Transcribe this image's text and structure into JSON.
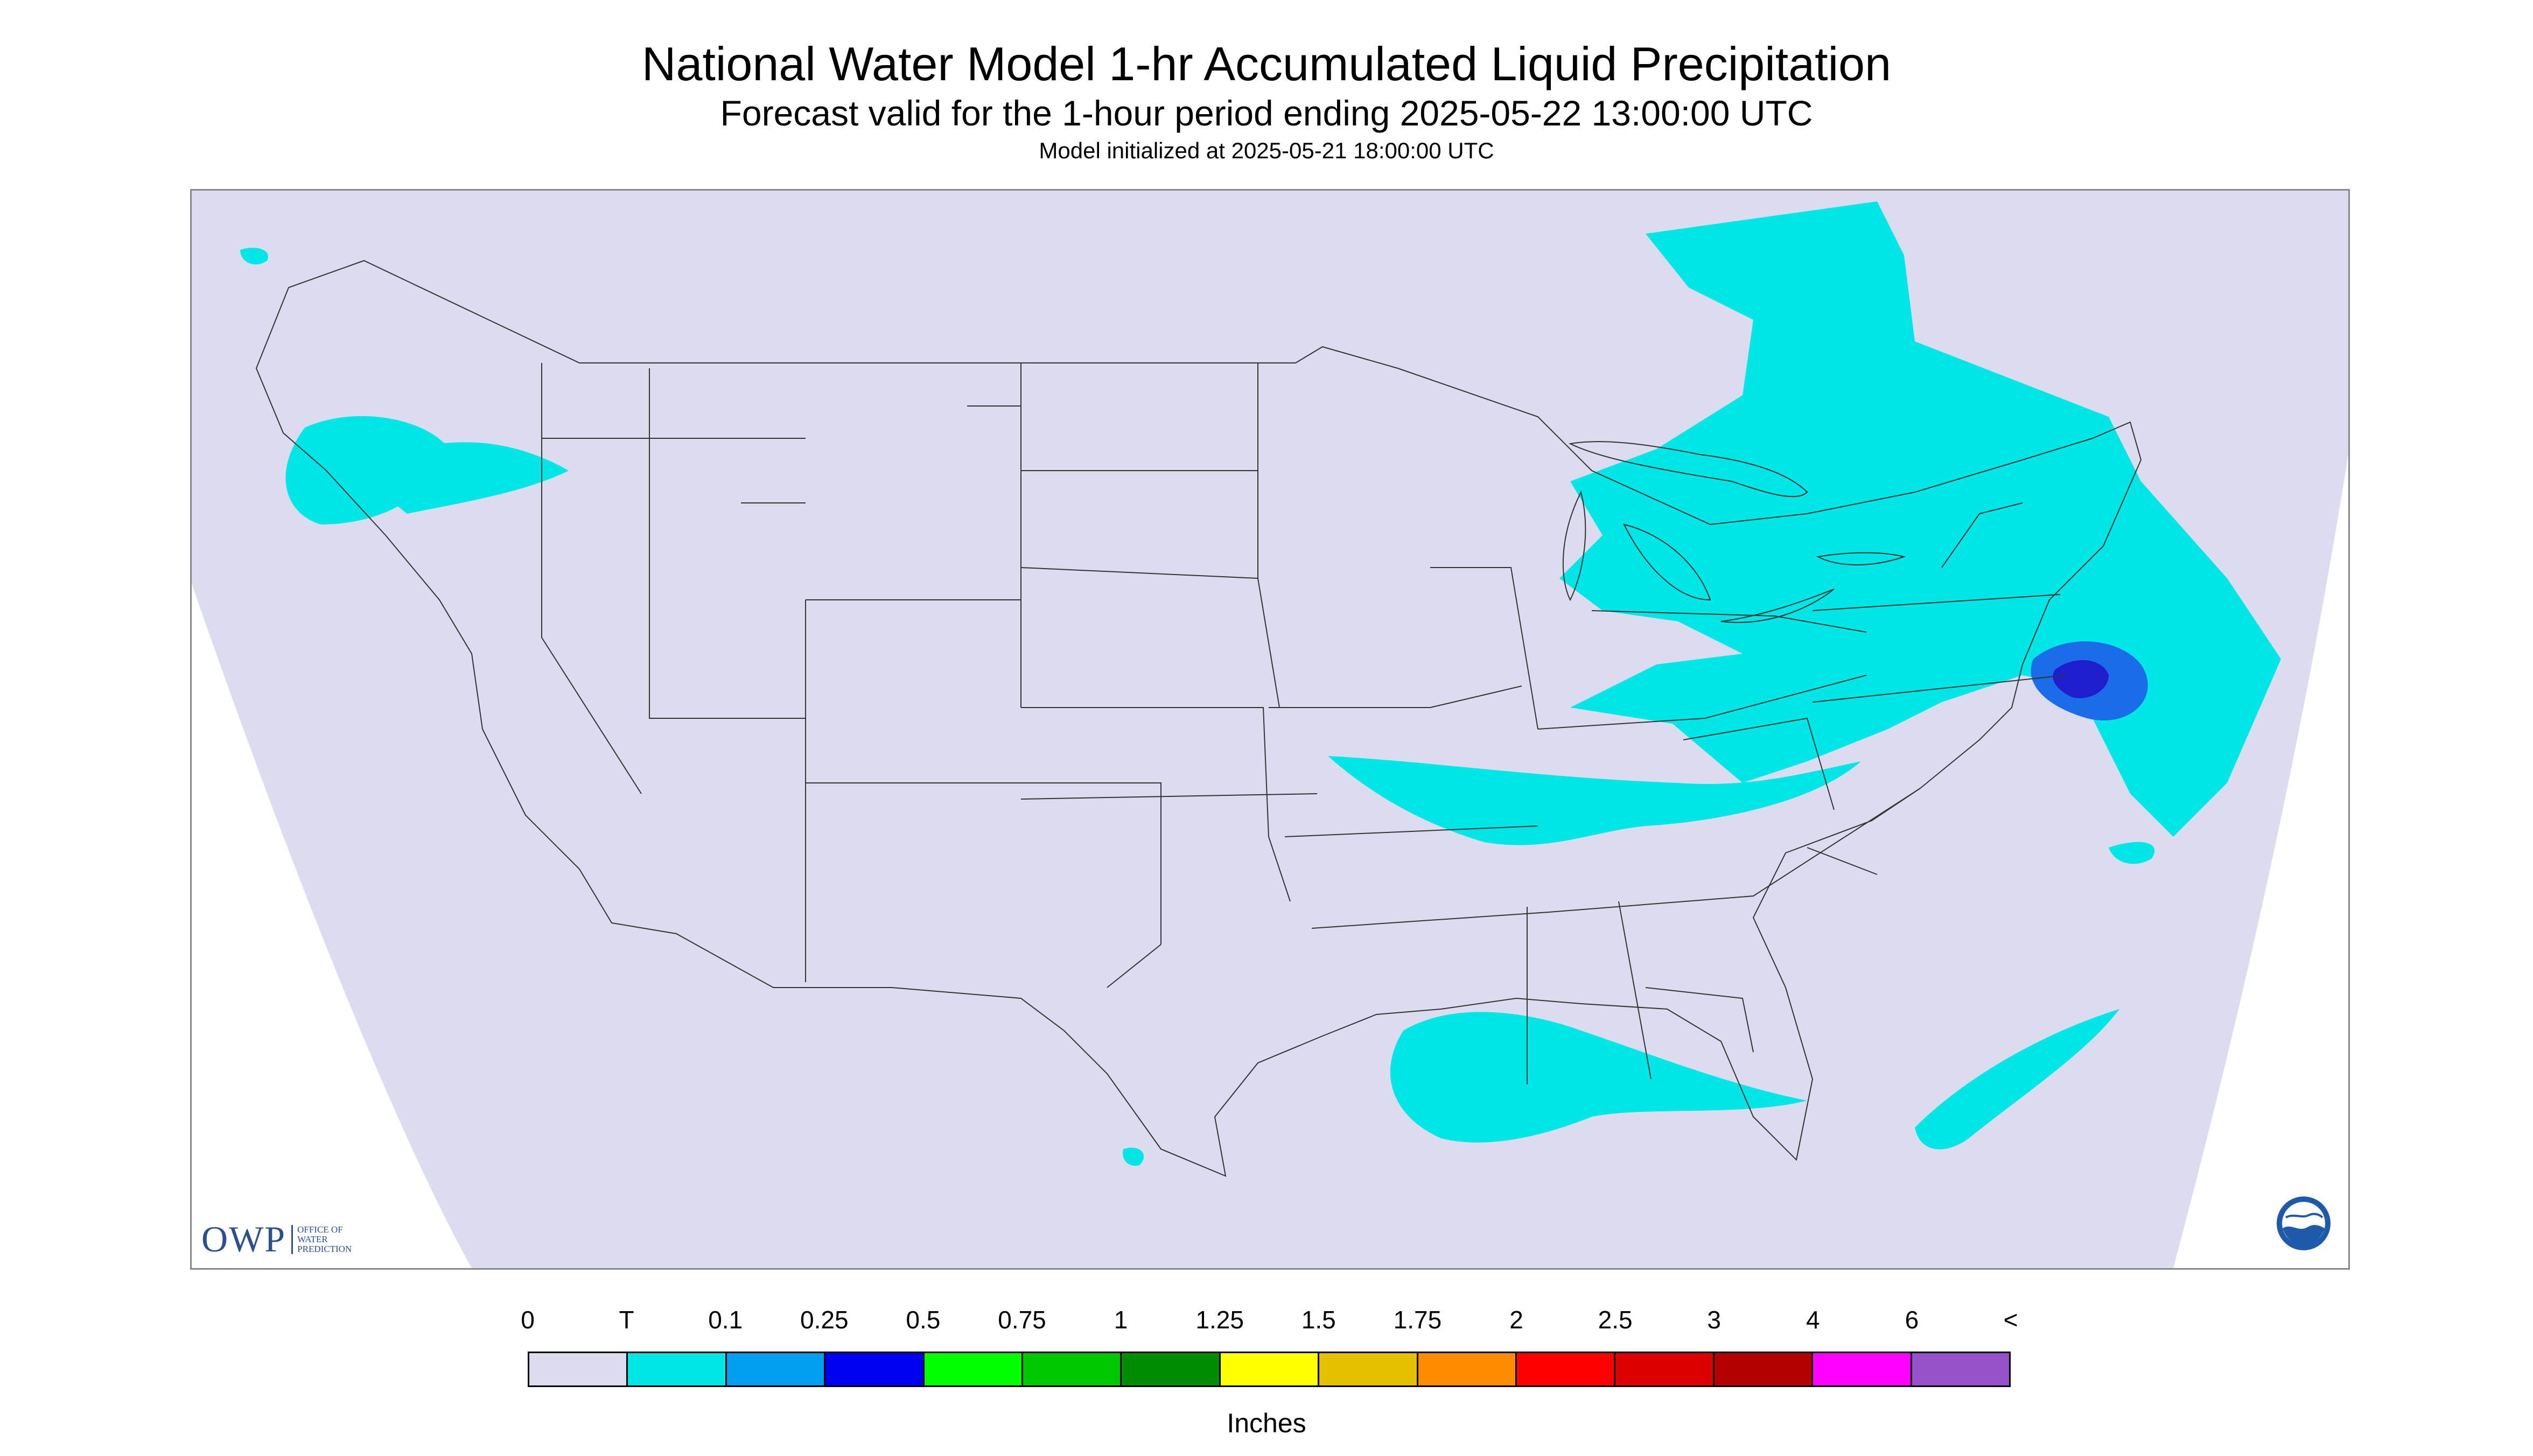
{
  "title": "National Water Model 1-hr Accumulated Liquid Precipitation",
  "subtitle": "Forecast valid for the 1-hour period ending 2025-05-22 13:00:00 UTC",
  "model_init": "Model initialized at 2025-05-21 18:00:00 UTC",
  "logo": {
    "owp_abbrev": "OWP",
    "owp_full": "OFFICE OF WATER PREDICTION",
    "noaa": "NOAA"
  },
  "legend": {
    "labels": [
      "0",
      "T",
      "0.1",
      "0.25",
      "0.5",
      "0.75",
      "1",
      "1.25",
      "1.5",
      "1.75",
      "2",
      "2.5",
      "3",
      "4",
      "6",
      "<"
    ],
    "colors": [
      "#dcdcf0",
      "#00e6e6",
      "#009ef0",
      "#0000f0",
      "#00ff00",
      "#00c800",
      "#008c00",
      "#ffff00",
      "#e6be00",
      "#ff8c00",
      "#ff0000",
      "#dc0000",
      "#b40000",
      "#ff00ff",
      "#9650c8"
    ],
    "units": "Inches"
  },
  "map": {
    "background_color": "#dcdcf0",
    "precip_color": "#00e6e6",
    "heavy_color": "#1a6ce8",
    "heaviest_color": "#1e1ecf"
  }
}
